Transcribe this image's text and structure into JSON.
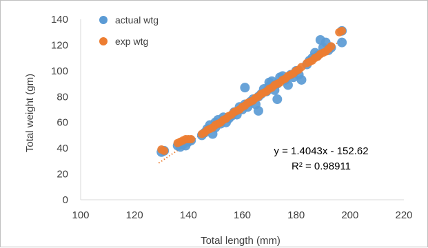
{
  "chart_data": {
    "type": "scatter",
    "xlabel": "Total length (mm)",
    "ylabel": "Total weight (gm)",
    "xlim": [
      100,
      220
    ],
    "ylim": [
      0,
      140
    ],
    "x_ticks": [
      100,
      120,
      140,
      160,
      180,
      200,
      220
    ],
    "y_ticks": [
      0,
      20,
      40,
      60,
      80,
      100,
      120,
      140
    ],
    "grid": false,
    "legend_position": "top-left",
    "series": [
      {
        "name": "actual wtg",
        "color": "#5b9bd5",
        "points": [
          [
            130,
            37
          ],
          [
            131,
            38
          ],
          [
            136,
            42
          ],
          [
            137,
            41
          ],
          [
            138,
            43
          ],
          [
            139,
            42
          ],
          [
            140,
            45
          ],
          [
            141,
            46
          ],
          [
            145,
            50
          ],
          [
            146,
            52
          ],
          [
            147,
            55
          ],
          [
            148,
            58
          ],
          [
            149,
            51
          ],
          [
            150,
            56
          ],
          [
            150,
            60
          ],
          [
            151,
            62
          ],
          [
            152,
            59
          ],
          [
            153,
            64
          ],
          [
            154,
            60
          ],
          [
            155,
            63
          ],
          [
            156,
            65
          ],
          [
            157,
            68
          ],
          [
            158,
            66
          ],
          [
            159,
            72
          ],
          [
            160,
            70
          ],
          [
            161,
            74
          ],
          [
            161,
            87
          ],
          [
            162,
            72
          ],
          [
            163,
            76
          ],
          [
            164,
            78
          ],
          [
            165,
            74
          ],
          [
            166,
            80
          ],
          [
            166,
            69
          ],
          [
            167,
            82
          ],
          [
            168,
            86
          ],
          [
            169,
            84
          ],
          [
            170,
            88
          ],
          [
            170,
            91
          ],
          [
            171,
            92
          ],
          [
            172,
            85
          ],
          [
            173,
            90
          ],
          [
            173,
            78
          ],
          [
            174,
            95
          ],
          [
            175,
            96
          ],
          [
            176,
            93
          ],
          [
            177,
            89
          ],
          [
            178,
            97
          ],
          [
            179,
            95
          ],
          [
            180,
            100
          ],
          [
            181,
            97
          ],
          [
            182,
            93
          ],
          [
            184,
            105
          ],
          [
            185,
            108
          ],
          [
            186,
            110
          ],
          [
            187,
            114
          ],
          [
            188,
            112
          ],
          [
            189,
            124
          ],
          [
            190,
            118
          ],
          [
            191,
            122
          ],
          [
            192,
            116
          ],
          [
            193,
            118
          ],
          [
            197,
            131
          ],
          [
            197,
            122
          ]
        ]
      },
      {
        "name": "exp wtg",
        "color": "#ed7d31",
        "points": [
          [
            130,
            39
          ],
          [
            131,
            38
          ],
          [
            136,
            44
          ],
          [
            137,
            45
          ],
          [
            138,
            46
          ],
          [
            139,
            47
          ],
          [
            140,
            47
          ],
          [
            141,
            47
          ],
          [
            145,
            51
          ],
          [
            146,
            52
          ],
          [
            147,
            54
          ],
          [
            148,
            55
          ],
          [
            149,
            56
          ],
          [
            150,
            58
          ],
          [
            151,
            59
          ],
          [
            152,
            60
          ],
          [
            153,
            62
          ],
          [
            154,
            63
          ],
          [
            155,
            65
          ],
          [
            156,
            66
          ],
          [
            157,
            68
          ],
          [
            158,
            69
          ],
          [
            159,
            70
          ],
          [
            160,
            72
          ],
          [
            161,
            73
          ],
          [
            162,
            75
          ],
          [
            163,
            76
          ],
          [
            164,
            77
          ],
          [
            165,
            79
          ],
          [
            166,
            80
          ],
          [
            167,
            82
          ],
          [
            168,
            83
          ],
          [
            169,
            84
          ],
          [
            170,
            86
          ],
          [
            171,
            87
          ],
          [
            172,
            89
          ],
          [
            173,
            90
          ],
          [
            174,
            91
          ],
          [
            175,
            93
          ],
          [
            176,
            94
          ],
          [
            177,
            96
          ],
          [
            178,
            97
          ],
          [
            179,
            98
          ],
          [
            180,
            100
          ],
          [
            181,
            101
          ],
          [
            182,
            103
          ],
          [
            184,
            106
          ],
          [
            185,
            107
          ],
          [
            186,
            108
          ],
          [
            187,
            110
          ],
          [
            188,
            111
          ],
          [
            189,
            113
          ],
          [
            190,
            114
          ],
          [
            191,
            115
          ],
          [
            192,
            117
          ],
          [
            193,
            119
          ],
          [
            197,
            131
          ],
          [
            196,
            130
          ]
        ]
      }
    ],
    "trendline": {
      "series": "exp wtg",
      "slope": 1.4043,
      "intercept": -152.62,
      "x_range": [
        129,
        197
      ],
      "style": "dotted",
      "color": "#ed7d31",
      "equation_label": "y = 1.4043x - 152.62",
      "r2_label": "R² = 0.98911"
    }
  }
}
